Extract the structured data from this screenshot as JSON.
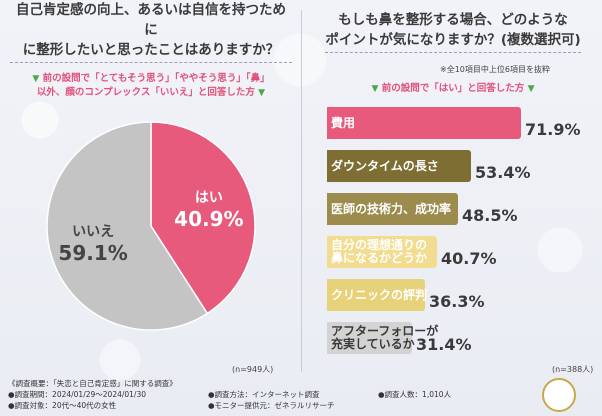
{
  "left": {
    "title_line1": "自己肯定感の向上、あるいは自信を持つために",
    "title_line2": "に整形したいと思ったことはありますか？",
    "note_line1": "前の設問で「とてもそう思う」「ややそう思う」「鼻」",
    "note_line2": "以外、顔のコンプレックス「いいえ」と回答した方",
    "n": "(n=949人)"
  },
  "right": {
    "title_line1": "もしも鼻を整形する場合、どのような",
    "title_line2": "ポイントが気になりますか？(複数選択可)",
    "subnote": "※全10項目中上位6項目を抜粋",
    "note": "前の設問で「はい」と回答した方",
    "n": "(n=388人)"
  },
  "footer": {
    "overview": "《調査概要：「失恋と自己肯定感」に関する調査》",
    "period": "●調査期間：2024/01/29～2024/01/30",
    "target": "●調査対象：20代～40代の女性",
    "method": "●調査方法：インターネット調査",
    "provider": "●モニター提供元：ゼネラルリサーチ",
    "count": "●調査人数：1,010人"
  },
  "colors": {
    "pink": "#e75a7b",
    "gray": "#c4c4c4",
    "olive": "#8a7a3a",
    "accent_green": "#4aa84a"
  },
  "chart_data": [
    {
      "type": "pie",
      "title": "自己肯定感の向上、あるいは自信を持つために整形したいと思ったことはありますか？",
      "slices": [
        {
          "label": "はい",
          "value": 40.9,
          "display": "40.9%",
          "color": "#e75a7b"
        },
        {
          "label": "いいえ",
          "value": 59.1,
          "display": "59.1%",
          "color": "#c4c4c4"
        }
      ]
    },
    {
      "type": "bar",
      "orientation": "horizontal",
      "title": "もしも鼻を整形する場合、どのようなポイントが気になりますか？(複数選択可)",
      "xlim": [
        0,
        100
      ],
      "categories": [
        "費用",
        "ダウンタイムの長さ",
        "医師の技術力、成功率",
        "自分の理想通りの鼻になるかどうか",
        "クリニックの評判",
        "アフターフォローが充実しているか"
      ],
      "label_lines": [
        [
          "費用"
        ],
        [
          "ダウンタイムの長さ"
        ],
        [
          "医師の技術力、成功率"
        ],
        [
          "自分の理想通りの",
          "鼻になるかどうか"
        ],
        [
          "クリニックの評判"
        ],
        [
          "アフターフォローが",
          "充実しているか"
        ]
      ],
      "values": [
        71.9,
        53.4,
        48.5,
        40.7,
        36.3,
        31.4
      ],
      "display": [
        "71.9%",
        "53.4%",
        "48.5%",
        "40.7%",
        "36.3%",
        "31.4%"
      ],
      "colors": [
        "#e75a7b",
        "#7f6e34",
        "#9b8c4d",
        "#f1dc8f",
        "#e7d27a",
        "#d3d3d3"
      ],
      "text_colors": [
        "#ffffff",
        "#ffffff",
        "#ffffff",
        "#ffffff",
        "#ffffff",
        "#3a3a3a"
      ]
    }
  ]
}
